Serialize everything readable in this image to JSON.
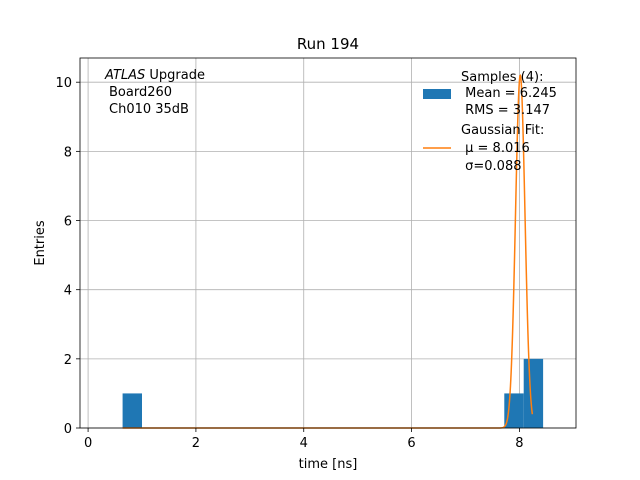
{
  "chart_data": {
    "type": "bar",
    "title": "Run 194",
    "xlabel": "time [ns]",
    "ylabel": "Entries",
    "xlim": [
      -0.15,
      9.05
    ],
    "ylim": [
      0,
      10.7
    ],
    "xticks": [
      0,
      2,
      4,
      6,
      8
    ],
    "yticks": [
      0,
      2,
      4,
      6,
      8,
      10
    ],
    "grid": true,
    "legend_placement": "top-right",
    "annotation": {
      "atlas": "ATLAS",
      "label": " Upgrade",
      "line2": "Board260",
      "line3": "Ch010 35dB"
    },
    "histogram": {
      "name": "Samples (4):",
      "color": "#1f77b4",
      "bin_width": 0.36,
      "bins": [
        {
          "x0": 0.64,
          "x1": 1.0,
          "count": 1
        },
        {
          "x0": 7.72,
          "x1": 8.08,
          "count": 1
        },
        {
          "x0": 8.08,
          "x1": 8.44,
          "count": 2
        }
      ],
      "legend_lines": [
        " Mean = 6.245",
        " RMS = 3.147"
      ]
    },
    "fit": {
      "name": "Gaussian Fit:",
      "color": "#ff7f0e",
      "mu": 8.016,
      "sigma": 0.088,
      "amplitude": 10.2,
      "x_range": [
        0.64,
        8.24
      ],
      "legend_lines": [
        " μ = 8.016",
        " σ=0.088"
      ]
    }
  }
}
